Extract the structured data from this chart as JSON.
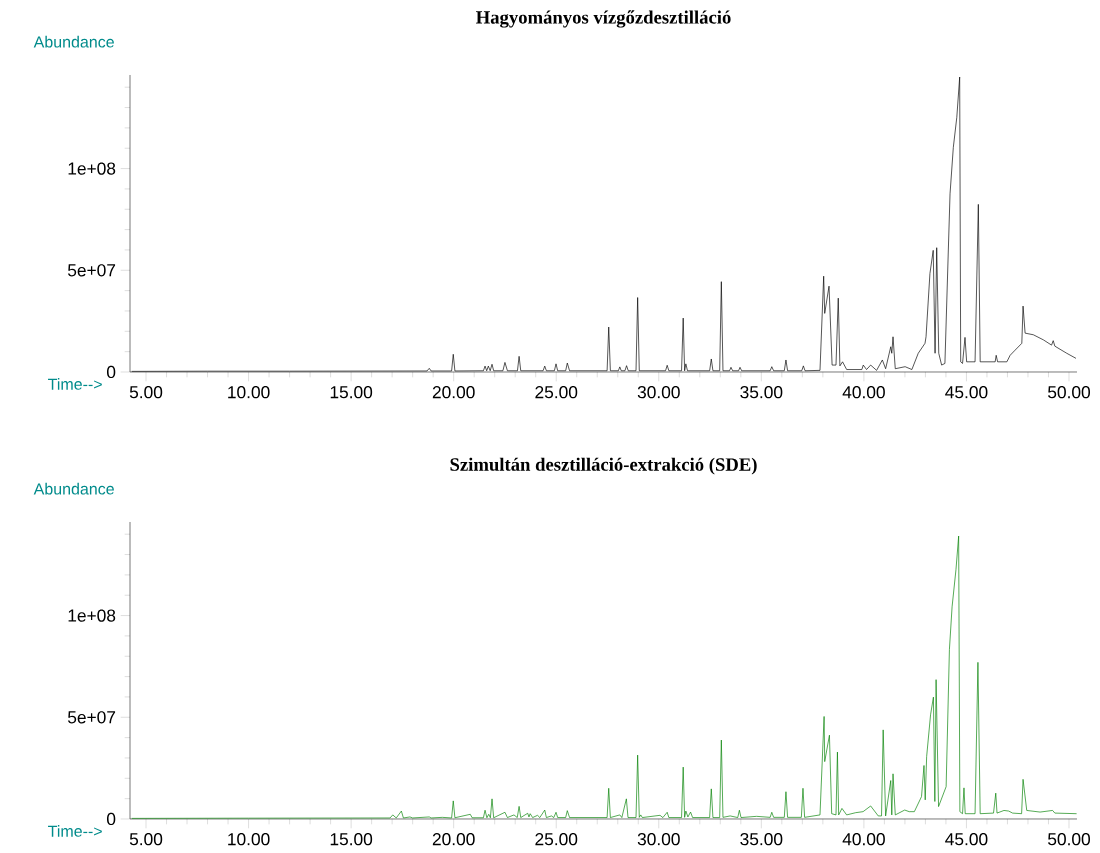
{
  "chart_data": [
    {
      "type": "line",
      "title": "Hagyományos vízgőzdesztilláció",
      "xlabel": "Time-->",
      "ylabel": "Abundance",
      "color": "#000000",
      "xlim": [
        4.22,
        50.39
      ],
      "ylim": [
        0,
        146000000
      ],
      "xticks": [
        {
          "value": 5,
          "label": "5.00"
        },
        {
          "value": 6,
          "label": null
        },
        {
          "value": 7,
          "label": null
        },
        {
          "value": 8,
          "label": null
        },
        {
          "value": 9,
          "label": null
        },
        {
          "value": 10,
          "label": "10.00"
        },
        {
          "value": 11,
          "label": null
        },
        {
          "value": 12,
          "label": null
        },
        {
          "value": 13,
          "label": null
        },
        {
          "value": 14,
          "label": null
        },
        {
          "value": 15,
          "label": "15.00"
        },
        {
          "value": 16,
          "label": null
        },
        {
          "value": 17,
          "label": null
        },
        {
          "value": 18,
          "label": null
        },
        {
          "value": 19,
          "label": null
        },
        {
          "value": 20,
          "label": "20.00"
        },
        {
          "value": 21,
          "label": null
        },
        {
          "value": 22,
          "label": null
        },
        {
          "value": 23,
          "label": null
        },
        {
          "value": 24,
          "label": null
        },
        {
          "value": 25,
          "label": "25.00"
        },
        {
          "value": 26,
          "label": null
        },
        {
          "value": 27,
          "label": null
        },
        {
          "value": 28,
          "label": null
        },
        {
          "value": 29,
          "label": null
        },
        {
          "value": 30,
          "label": "30.00"
        },
        {
          "value": 31,
          "label": null
        },
        {
          "value": 32,
          "label": null
        },
        {
          "value": 33,
          "label": null
        },
        {
          "value": 34,
          "label": null
        },
        {
          "value": 35,
          "label": "35.00"
        },
        {
          "value": 36,
          "label": null
        },
        {
          "value": 37,
          "label": null
        },
        {
          "value": 38,
          "label": null
        },
        {
          "value": 39,
          "label": null
        },
        {
          "value": 40,
          "label": "40.00"
        },
        {
          "value": 41,
          "label": null
        },
        {
          "value": 42,
          "label": null
        },
        {
          "value": 43,
          "label": null
        },
        {
          "value": 44,
          "label": null
        },
        {
          "value": 45,
          "label": "45.00"
        },
        {
          "value": 46,
          "label": null
        },
        {
          "value": 47,
          "label": null
        },
        {
          "value": 48,
          "label": null
        },
        {
          "value": 49,
          "label": null
        },
        {
          "value": 50,
          "label": "50.00"
        }
      ],
      "yticks": [
        0,
        {
          "value": 10000000,
          "label": null
        },
        {
          "value": 20000000,
          "label": null
        },
        {
          "value": 30000000,
          "label": null
        },
        {
          "value": 40000000,
          "label": null
        },
        {
          "value": 50000000,
          "label": "5e+07"
        },
        {
          "value": 60000000,
          "label": null
        },
        {
          "value": 70000000,
          "label": null
        },
        {
          "value": 80000000,
          "label": null
        },
        {
          "value": 90000000,
          "label": null
        },
        {
          "value": 100000000,
          "label": "1e+08"
        },
        {
          "value": 110000000,
          "label": null
        },
        {
          "value": 120000000,
          "label": null
        },
        {
          "value": 130000000,
          "label": null
        },
        {
          "value": 140000000,
          "label": null
        }
      ],
      "x": [
        4.3,
        8,
        12,
        18.7,
        18.81,
        18.9,
        19.9,
        19.98,
        20.06,
        21.45,
        21.53,
        21.61,
        21.69,
        21.78,
        21.87,
        21.95,
        22.4,
        22.5,
        22.62,
        23.11,
        23.19,
        23.27,
        24.36,
        24.44,
        24.52,
        24.91,
        24.99,
        25.07,
        25.46,
        25.54,
        25.65,
        27.48,
        27.56,
        27.64,
        28.03,
        28.1,
        28.17,
        28.35,
        28.43,
        28.51,
        28.89,
        28.97,
        29.05,
        30.33,
        30.41,
        30.49,
        31.11,
        31.19,
        31.26,
        31.32,
        31.4,
        32.48,
        32.56,
        32.64,
        32.97,
        33.05,
        33.13,
        33.45,
        33.52,
        33.6,
        33.89,
        33.96,
        34.04,
        35.43,
        35.51,
        35.6,
        36.12,
        36.2,
        36.28,
        36.97,
        37.05,
        37.13,
        37.86,
        38.04,
        38.09,
        38.3,
        38.45,
        38.64,
        38.75,
        38.83,
        38.96,
        39.16,
        39.9,
        39.97,
        40.13,
        40.33,
        40.62,
        40.9,
        41.06,
        41.31,
        41.36,
        41.42,
        41.53,
        42.01,
        42.34,
        42.65,
        42.98,
        43.03,
        43.22,
        43.38,
        43.47,
        43.55,
        43.65,
        43.79,
        43.95,
        44.2,
        44.36,
        44.53,
        44.67,
        44.72,
        44.81,
        44.93,
        45.01,
        45.42,
        45.58,
        45.67,
        46.4,
        46.45,
        46.52,
        46.97,
        47.13,
        47.37,
        47.7,
        47.76,
        47.86,
        48.26,
        48.75,
        49.15,
        49.23,
        49.31,
        49.89,
        50.34
      ],
      "values": [
        300000.0,
        400000.0,
        400000.0,
        500000.0,
        1800000.0,
        500000.0,
        500000.0,
        8700000.0,
        500000.0,
        600000.0,
        2900000.0,
        600000.0,
        2900000.0,
        600000.0,
        3800000.0,
        600000.0,
        600000.0,
        4700000.0,
        600000.0,
        600000.0,
        7700000.0,
        600000.0,
        600000.0,
        2900000.0,
        600000.0,
        600000.0,
        4000000.0,
        600000.0,
        600000.0,
        4400000.0,
        600000.0,
        600000.0,
        22100000.0,
        600000.0,
        600000.0,
        2500000.0,
        600000.0,
        600000.0,
        3100000.0,
        600000.0,
        600000.0,
        36600000.0,
        600000.0,
        600000.0,
        3300000.0,
        600000.0,
        600000.0,
        26500000.0,
        600000.0,
        4000000.0,
        600000.0,
        600000.0,
        6400000.0,
        600000.0,
        600000.0,
        44400000.0,
        600000.0,
        600000.0,
        2300000.0,
        600000.0,
        600000.0,
        2300000.0,
        600000.0,
        600000.0,
        2600000.0,
        600000.0,
        600000.0,
        5900000.0,
        600000.0,
        600000.0,
        3000000.0,
        600000.0,
        800000.0,
        47100000.0,
        28800000.0,
        42200000.0,
        3400000.0,
        3400000.0,
        36300000.0,
        3000000.0,
        5000000.0,
        1200000.0,
        1200000.0,
        3400000.0,
        1200000.0,
        3400000.0,
        800000.0,
        5900000.0,
        1600000.0,
        12400000.0,
        9200000.0,
        17300000.0,
        1600000.0,
        2600000.0,
        1200000.0,
        9200000.0,
        14100000.0,
        17300000.0,
        48400000.0,
        59800000.0,
        9200000.0,
        61100000.0,
        9200000.0,
        3400000.0,
        4200000.0,
        87600000.0,
        110400000.0,
        125200000.0,
        145000000.0,
        5000000.0,
        4200000.0,
        17000000.0,
        5000000.0,
        5000000.0,
        82400000.0,
        5000000.0,
        5000000.0,
        8200000.0,
        5000000.0,
        5000000.0,
        8200000.0,
        10700000.0,
        14100000.0,
        32400000.0,
        19100000.0,
        18300000.0,
        15800000.0,
        13200000.0,
        15400000.0,
        12700000.0,
        9200000.0,
        6700000.0
      ]
    },
    {
      "type": "line",
      "title": "Szimultán desztilláció-extrakció (SDE)",
      "xlabel": "Time-->",
      "ylabel": "Abundance",
      "color": "#008000",
      "xlim": [
        4.22,
        50.39
      ],
      "ylim": [
        0,
        146000000
      ],
      "xticks": [
        {
          "value": 5,
          "label": "5.00"
        },
        {
          "value": 6,
          "label": null
        },
        {
          "value": 7,
          "label": null
        },
        {
          "value": 8,
          "label": null
        },
        {
          "value": 9,
          "label": null
        },
        {
          "value": 10,
          "label": "10.00"
        },
        {
          "value": 11,
          "label": null
        },
        {
          "value": 12,
          "label": null
        },
        {
          "value": 13,
          "label": null
        },
        {
          "value": 14,
          "label": null
        },
        {
          "value": 15,
          "label": "15.00"
        },
        {
          "value": 16,
          "label": null
        },
        {
          "value": 17,
          "label": null
        },
        {
          "value": 18,
          "label": null
        },
        {
          "value": 19,
          "label": null
        },
        {
          "value": 20,
          "label": "20.00"
        },
        {
          "value": 21,
          "label": null
        },
        {
          "value": 22,
          "label": null
        },
        {
          "value": 23,
          "label": null
        },
        {
          "value": 24,
          "label": null
        },
        {
          "value": 25,
          "label": "25.00"
        },
        {
          "value": 26,
          "label": null
        },
        {
          "value": 27,
          "label": null
        },
        {
          "value": 28,
          "label": null
        },
        {
          "value": 29,
          "label": null
        },
        {
          "value": 30,
          "label": "30.00"
        },
        {
          "value": 31,
          "label": null
        },
        {
          "value": 32,
          "label": null
        },
        {
          "value": 33,
          "label": null
        },
        {
          "value": 34,
          "label": null
        },
        {
          "value": 35,
          "label": "35.00"
        },
        {
          "value": 36,
          "label": null
        },
        {
          "value": 37,
          "label": null
        },
        {
          "value": 38,
          "label": null
        },
        {
          "value": 39,
          "label": null
        },
        {
          "value": 40,
          "label": "40.00"
        },
        {
          "value": 41,
          "label": null
        },
        {
          "value": 42,
          "label": null
        },
        {
          "value": 43,
          "label": null
        },
        {
          "value": 44,
          "label": null
        },
        {
          "value": 45,
          "label": "45.00"
        },
        {
          "value": 46,
          "label": null
        },
        {
          "value": 47,
          "label": null
        },
        {
          "value": 48,
          "label": null
        },
        {
          "value": 49,
          "label": null
        },
        {
          "value": 50,
          "label": "50.00"
        }
      ],
      "yticks": [
        0,
        {
          "value": 10000000,
          "label": null
        },
        {
          "value": 20000000,
          "label": null
        },
        {
          "value": 30000000,
          "label": null
        },
        {
          "value": 40000000,
          "label": null
        },
        {
          "value": 50000000,
          "label": "5e+07"
        },
        {
          "value": 60000000,
          "label": null
        },
        {
          "value": 70000000,
          "label": null
        },
        {
          "value": 80000000,
          "label": null
        },
        {
          "value": 90000000,
          "label": null
        },
        {
          "value": 100000000,
          "label": "1e+08"
        },
        {
          "value": 110000000,
          "label": null
        },
        {
          "value": 120000000,
          "label": null
        },
        {
          "value": 130000000,
          "label": null
        },
        {
          "value": 140000000,
          "label": null
        }
      ],
      "x": [
        4.3,
        10,
        16.9,
        17.03,
        17.2,
        17.45,
        17.55,
        17.87,
        18.0,
        18.81,
        18.9,
        19.45,
        19.9,
        19.98,
        20.06,
        20.81,
        20.9,
        21.45,
        21.53,
        21.62,
        21.71,
        21.79,
        21.87,
        21.95,
        22.5,
        22.62,
        22.94,
        23.1,
        23.19,
        23.27,
        23.61,
        23.67,
        23.73,
        23.85,
        24.09,
        24.2,
        24.44,
        24.52,
        24.77,
        24.88,
        24.99,
        25.07,
        25.46,
        25.54,
        25.65,
        27.48,
        27.56,
        27.64,
        28.1,
        28.2,
        28.42,
        28.5,
        28.89,
        28.97,
        29.05,
        29.12,
        29.2,
        30.06,
        30.2,
        30.41,
        30.49,
        31.11,
        31.19,
        31.26,
        31.32,
        31.42,
        31.55,
        31.65,
        32.48,
        32.56,
        32.64,
        32.97,
        33.05,
        33.13,
        33.48,
        33.85,
        33.93,
        34.01,
        34.77,
        35.43,
        35.51,
        35.6,
        36.12,
        36.2,
        36.28,
        36.95,
        37.03,
        37.11,
        37.86,
        38.06,
        38.09,
        38.32,
        38.43,
        38.64,
        38.71,
        38.77,
        38.93,
        39.16,
        39.6,
        39.96,
        40.33,
        40.7,
        40.86,
        40.94,
        41.06,
        41.31,
        41.36,
        41.42,
        41.53,
        41.99,
        42.21,
        42.46,
        42.81,
        42.93,
        42.99,
        43.06,
        43.25,
        43.39,
        43.46,
        43.52,
        43.64,
        44.01,
        44.17,
        44.3,
        44.49,
        44.62,
        44.68,
        44.81,
        44.88,
        44.94,
        45.42,
        45.56,
        45.67,
        46.32,
        46.43,
        46.49,
        46.83,
        47.06,
        47.25,
        47.69,
        47.76,
        47.94,
        48.59,
        49.2,
        49.31,
        50.37
      ],
      "values": [
        300000.0,
        400000.0,
        500000.0,
        2000000.0,
        500000.0,
        3900000.0,
        500000.0,
        1000000.0,
        500000.0,
        1000000.0,
        500000.0,
        800000.0,
        500000.0,
        8900000.0,
        600000.0,
        2300000.0,
        600000.0,
        600000.0,
        4300000.0,
        600000.0,
        2300000.0,
        600000.0,
        9900000.0,
        600000.0,
        3300000.0,
        700000.0,
        2000000.0,
        700000.0,
        6200000.0,
        700000.0,
        2800000.0,
        1000000.0,
        2600000.0,
        700000.0,
        1800000.0,
        700000.0,
        4400000.0,
        700000.0,
        1500000.0,
        700000.0,
        3300000.0,
        700000.0,
        700000.0,
        4100000.0,
        700000.0,
        700000.0,
        15100000.0,
        700000.0,
        2000000.0,
        700000.0,
        9900000.0,
        700000.0,
        700000.0,
        31400000.0,
        800000.0,
        2000000.0,
        700000.0,
        1800000.0,
        700000.0,
        3300000.0,
        700000.0,
        700000.0,
        25500000.0,
        800000.0,
        3900000.0,
        1000000.0,
        3400000.0,
        700000.0,
        700000.0,
        14800000.0,
        700000.0,
        700000.0,
        38800000.0,
        800000.0,
        1500000.0,
        700000.0,
        4300000.0,
        700000.0,
        1300000.0,
        800000.0,
        3300000.0,
        800000.0,
        800000.0,
        13400000.0,
        800000.0,
        800000.0,
        15100000.0,
        800000.0,
        2000000.0,
        50400000.0,
        28200000.0,
        41200000.0,
        2600000.0,
        2000000.0,
        32900000.0,
        2000000.0,
        5200000.0,
        2000000.0,
        3100000.0,
        3600000.0,
        6400000.0,
        1500000.0,
        1500000.0,
        43800000.0,
        1500000.0,
        18900000.0,
        2000000.0,
        22200000.0,
        2000000.0,
        4400000.0,
        3600000.0,
        3600000.0,
        11000000.0,
        26300000.0,
        9400000.0,
        30700000.0,
        51200000.0,
        59900000.0,
        8600000.0,
        68500000.0,
        6100000.0,
        15900000.0,
        83300000.0,
        104300000.0,
        122700000.0,
        139100000.0,
        3600000.0,
        2600000.0,
        15300000.0,
        2600000.0,
        2600000.0,
        77000000.0,
        2600000.0,
        2900000.0,
        12700000.0,
        2900000.0,
        4200000.0,
        3900000.0,
        2900000.0,
        2600000.0,
        19500000.0,
        4200000.0,
        3400000.0,
        4200000.0,
        2900000.0,
        2600000.0
      ]
    }
  ]
}
